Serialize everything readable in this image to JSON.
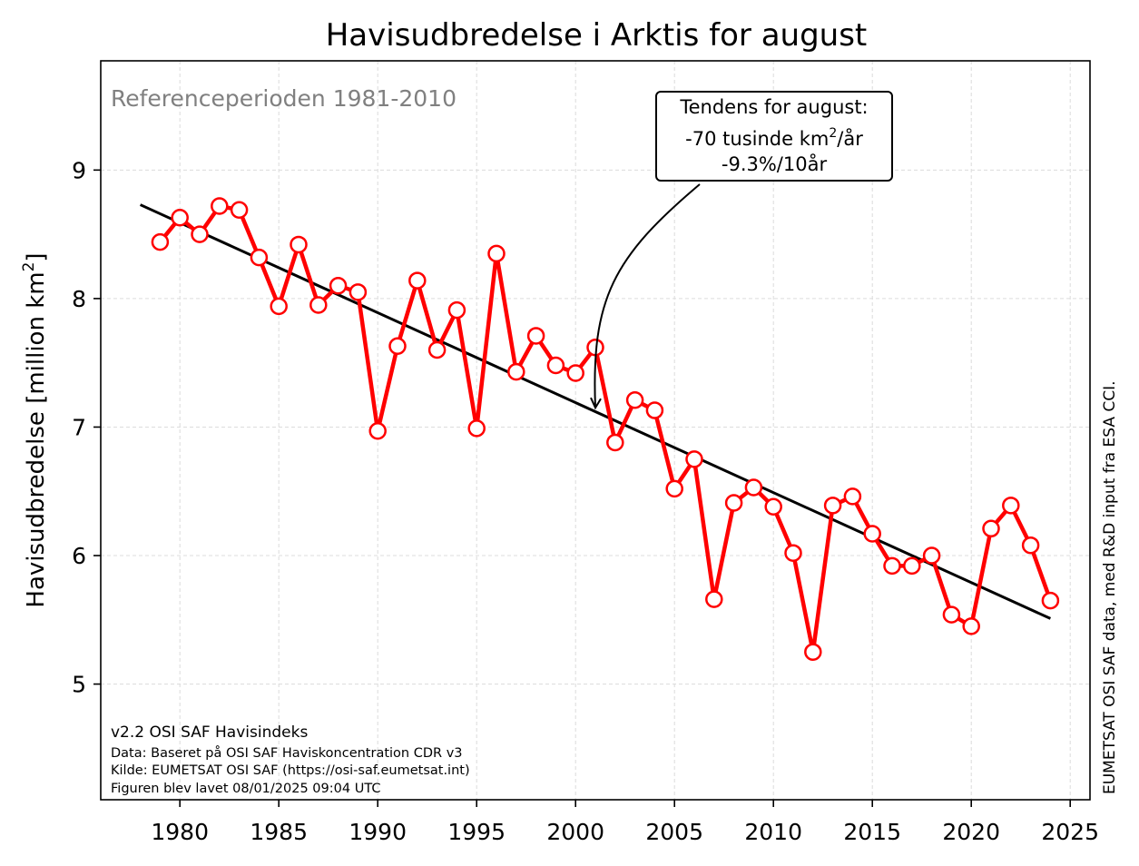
{
  "chart_data": {
    "type": "line",
    "title": "Havisudbredelse i Arktis for august",
    "ylabel": "Havisudbredelse [million km²]",
    "ylabel_main": "Havisudbredelse [million km",
    "ylabel_sup": "2",
    "ylabel_end": "]",
    "xlim": [
      1976,
      2026
    ],
    "ylim": [
      4.1,
      9.85
    ],
    "xticks": [
      1980,
      1985,
      1990,
      1995,
      2000,
      2005,
      2010,
      2015,
      2020,
      2025
    ],
    "yticks": [
      5,
      6,
      7,
      8,
      9
    ],
    "grid": true,
    "reference_text": "Referenceperioden 1981-2010",
    "series": [
      {
        "color": "#ff0000",
        "x": [
          1979,
          1980,
          1981,
          1982,
          1983,
          1984,
          1985,
          1986,
          1987,
          1988,
          1989,
          1990,
          1991,
          1992,
          1993,
          1994,
          1995,
          1996,
          1997,
          1998,
          1999,
          2000,
          2001,
          2002,
          2003,
          2004,
          2005,
          2006,
          2007,
          2008,
          2009,
          2010,
          2011,
          2012,
          2013,
          2014,
          2015,
          2016,
          2017,
          2018,
          2019,
          2020,
          2021,
          2022,
          2023,
          2024
        ],
        "y": [
          8.44,
          8.63,
          8.5,
          8.72,
          8.69,
          8.32,
          7.94,
          8.42,
          7.95,
          8.1,
          8.05,
          6.97,
          7.63,
          8.14,
          7.6,
          7.91,
          6.99,
          8.35,
          7.43,
          7.71,
          7.48,
          7.42,
          7.62,
          6.88,
          7.21,
          7.13,
          6.52,
          6.75,
          5.66,
          6.41,
          6.53,
          6.38,
          6.02,
          5.25,
          6.39,
          6.46,
          6.17,
          5.92,
          5.92,
          6.0,
          5.54,
          5.45,
          6.21,
          6.39,
          6.08,
          5.65
        ]
      }
    ],
    "trend": {
      "color": "#000000",
      "x": [
        1978,
        2024
      ],
      "y": [
        8.73,
        5.51
      ]
    },
    "annotation": {
      "lines": [
        "Tendens for august:",
        "-70 tusinde km²/år",
        "-9.3%/10år"
      ],
      "line2_pre": "-70 tusinde km",
      "line2_sup": "2",
      "line2_post": "/år",
      "arrow_target": {
        "x": 2001,
        "y": 7.15
      }
    },
    "footer": [
      "v2.2 OSI SAF Havisindeks",
      "Data: Baseret på OSI SAF Haviskoncentration CDR v3",
      "Kilde: EUMETSAT OSI SAF (https://osi-saf.eumetsat.int)",
      "Figuren blev lavet 08/01/2025 09:04 UTC"
    ],
    "side_note": "EUMETSAT OSI SAF data, med R&D input fra ESA CCI."
  }
}
